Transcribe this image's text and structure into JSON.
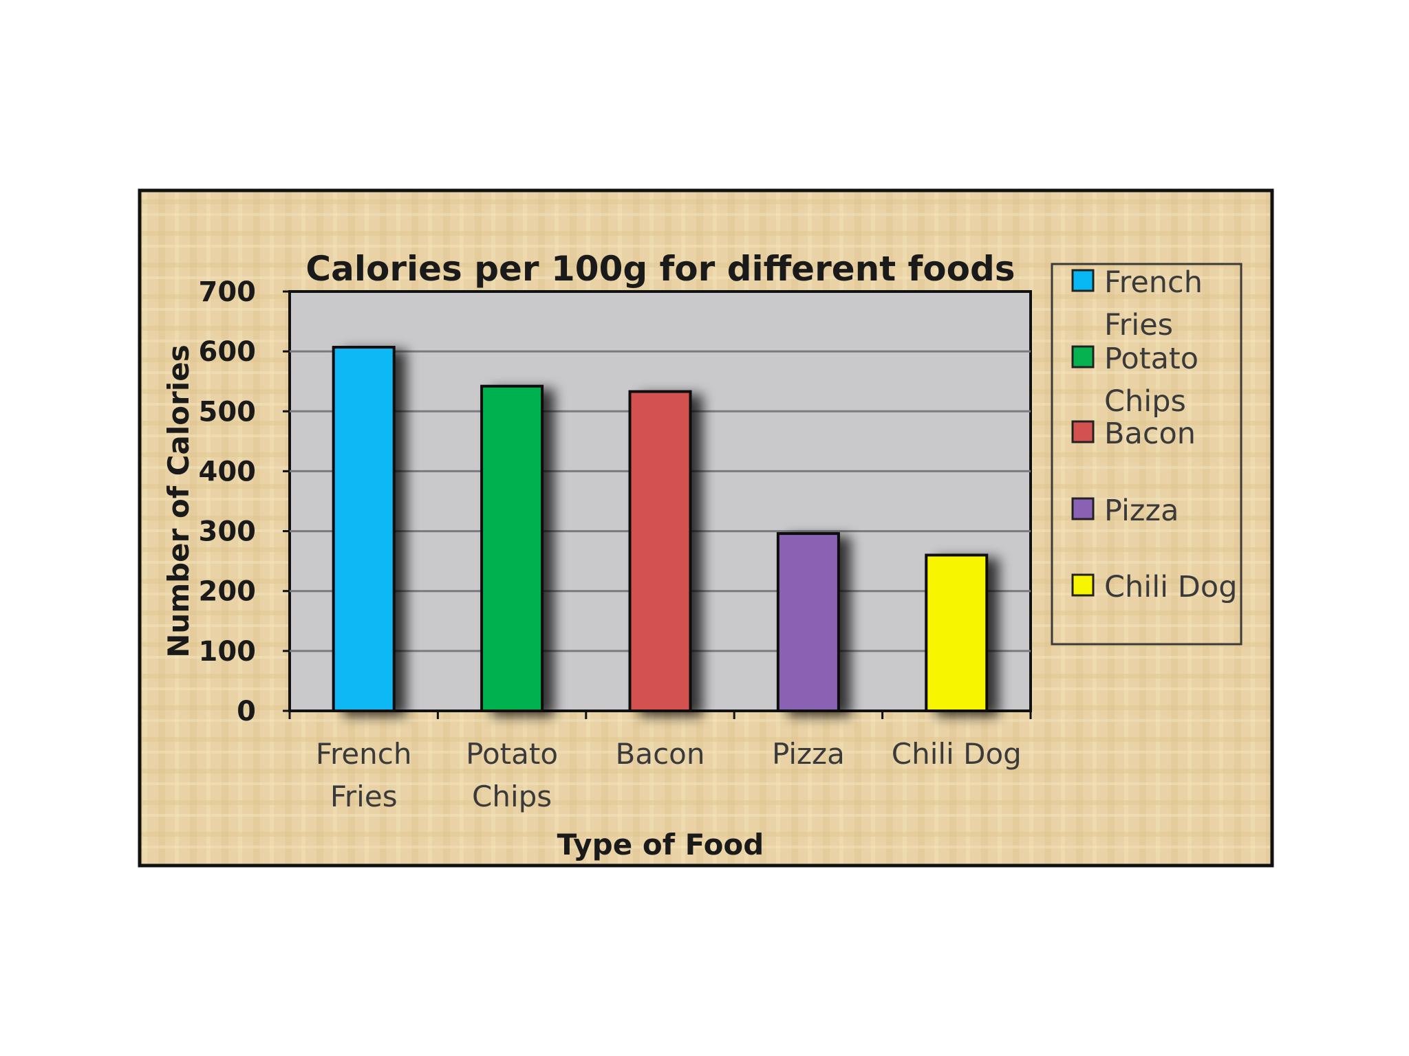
{
  "chart_data": {
    "type": "bar",
    "title": "Calories per 100g for different foods",
    "xlabel": "Type of Food",
    "ylabel": "Number of Calories",
    "categories": [
      [
        "French",
        "Fries"
      ],
      [
        "Potato",
        "Chips"
      ],
      [
        "Bacon"
      ],
      [
        "Pizza"
      ],
      [
        "Chili Dog"
      ]
    ],
    "values": [
      607,
      542,
      533,
      296,
      260
    ],
    "colors": [
      "#08b8f4",
      "#06b24f",
      "#d3514f",
      "#8a62b4",
      "#f8f500"
    ],
    "ylim": [
      0,
      700
    ],
    "yticks": [
      0,
      100,
      200,
      300,
      400,
      500,
      600,
      700
    ],
    "grid": true,
    "legend_position": "right",
    "legend": [
      [
        "French",
        "Fries"
      ],
      [
        "Potato",
        "Chips"
      ],
      [
        "Bacon"
      ],
      [
        "Pizza"
      ],
      [
        "Chili Dog"
      ]
    ]
  }
}
